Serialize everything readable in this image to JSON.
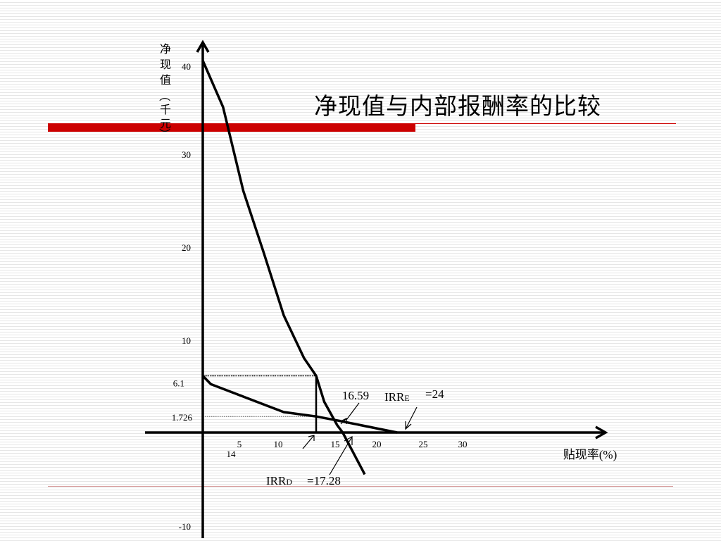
{
  "slide": {
    "title": "净现值与内部报酬率的比较",
    "accent_color": "#cc0000"
  },
  "chart_data": {
    "type": "line",
    "ylabel": "净现值（千元）",
    "xlabel": "贴现率(%)",
    "yticks": [
      40,
      30,
      20,
      10,
      -10
    ],
    "xticks": [
      5,
      10,
      15,
      20,
      25,
      30
    ],
    "ylim": [
      -10,
      40
    ],
    "xlim": [
      0,
      30
    ],
    "grid": false,
    "series": [
      {
        "values_x": [
          0,
          2.5,
          5,
          7.5,
          10,
          12.5,
          14,
          15,
          16.59,
          17.28,
          20
        ],
        "values_y": [
          40,
          35,
          26,
          19.4,
          12.6,
          8,
          6.1,
          3.3,
          0.8,
          0,
          -4.5
        ]
      },
      {
        "values_x": [
          0,
          1,
          10,
          14,
          16.59,
          24
        ],
        "values_y": [
          6.1,
          5.2,
          2.2,
          1.726,
          1.3,
          0
        ]
      }
    ],
    "reference_values": {
      "y_6_1": "6.1",
      "y_1_726": "1.726",
      "x_14": "14"
    },
    "annotations": {
      "a16_59": "16.59",
      "irr_e_main": "IRR",
      "irr_e_sub": "E",
      "irr_e_value": "=24",
      "irr_d_main": "IRR",
      "irr_d_sub": "D",
      "irr_d_value": "=17.28"
    }
  }
}
